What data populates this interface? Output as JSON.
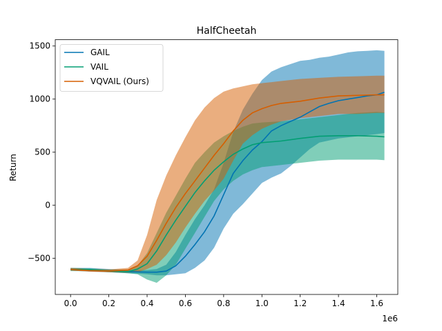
{
  "chart_data": {
    "type": "line",
    "title": "HalfCheetah",
    "xlabel": "",
    "ylabel": "Return",
    "x_offset_label": "1e6",
    "xlim": [
      -0.08,
      1.71
    ],
    "ylim": [
      -840,
      1560
    ],
    "xticks": [
      0.0,
      0.2,
      0.4,
      0.6,
      0.8,
      1.0,
      1.2,
      1.4,
      1.6
    ],
    "xtick_labels": [
      "0.0",
      "0.2",
      "0.4",
      "0.6",
      "0.8",
      "1.0",
      "1.2",
      "1.4",
      "1.6"
    ],
    "yticks": [
      -500,
      0,
      500,
      1000,
      1500
    ],
    "ytick_labels": [
      "−500",
      "0",
      "500",
      "1000",
      "1500"
    ],
    "grid": false,
    "legend_position": "top-left",
    "series": [
      {
        "name": "GAIL",
        "color": "#0173b2",
        "x": [
          0.0,
          0.1,
          0.2,
          0.3,
          0.4,
          0.45,
          0.5,
          0.55,
          0.6,
          0.65,
          0.7,
          0.75,
          0.8,
          0.85,
          0.9,
          0.95,
          1.0,
          1.05,
          1.1,
          1.15,
          1.2,
          1.25,
          1.3,
          1.35,
          1.4,
          1.45,
          1.5,
          1.55,
          1.6,
          1.64
        ],
        "y": [
          -605,
          -610,
          -620,
          -625,
          -630,
          -630,
          -620,
          -570,
          -480,
          -370,
          -250,
          -100,
          100,
          300,
          420,
          520,
          600,
          700,
          750,
          790,
          830,
          880,
          930,
          960,
          985,
          1000,
          1015,
          1030,
          1040,
          1065
        ],
        "upper": [
          -590,
          -590,
          -600,
          -610,
          -610,
          -600,
          -560,
          -440,
          -280,
          -130,
          0,
          150,
          400,
          690,
          900,
          1050,
          1180,
          1260,
          1300,
          1330,
          1360,
          1370,
          1390,
          1400,
          1420,
          1440,
          1450,
          1455,
          1460,
          1455
        ],
        "lower": [
          -615,
          -625,
          -630,
          -640,
          -650,
          -660,
          -660,
          -650,
          -640,
          -590,
          -520,
          -400,
          -220,
          -80,
          10,
          110,
          210,
          260,
          300,
          370,
          450,
          530,
          590,
          610,
          630,
          640,
          650,
          660,
          670,
          680
        ]
      },
      {
        "name": "VAIL",
        "color": "#029e73",
        "x": [
          0.0,
          0.1,
          0.2,
          0.3,
          0.35,
          0.4,
          0.45,
          0.5,
          0.55,
          0.6,
          0.65,
          0.7,
          0.75,
          0.8,
          0.85,
          0.9,
          0.95,
          1.0,
          1.1,
          1.2,
          1.3,
          1.4,
          1.5,
          1.6,
          1.64
        ],
        "y": [
          -605,
          -605,
          -620,
          -625,
          -600,
          -550,
          -430,
          -280,
          -140,
          -10,
          120,
          230,
          330,
          410,
          480,
          530,
          570,
          590,
          605,
          630,
          650,
          655,
          655,
          650,
          645
        ],
        "upper": [
          -590,
          -595,
          -605,
          -605,
          -570,
          -450,
          -260,
          -70,
          90,
          250,
          400,
          500,
          590,
          650,
          700,
          740,
          770,
          780,
          790,
          810,
          830,
          850,
          870,
          880,
          875
        ],
        "lower": [
          -620,
          -620,
          -630,
          -640,
          -650,
          -700,
          -730,
          -660,
          -560,
          -410,
          -260,
          -110,
          40,
          150,
          230,
          290,
          330,
          360,
          380,
          400,
          420,
          430,
          430,
          430,
          425
        ]
      },
      {
        "name": "VQVAIL (Ours)",
        "color": "#d55e00",
        "x": [
          0.0,
          0.1,
          0.2,
          0.3,
          0.35,
          0.4,
          0.45,
          0.5,
          0.55,
          0.6,
          0.65,
          0.7,
          0.75,
          0.8,
          0.85,
          0.9,
          0.95,
          1.0,
          1.05,
          1.1,
          1.2,
          1.3,
          1.4,
          1.5,
          1.6,
          1.64
        ],
        "y": [
          -605,
          -615,
          -620,
          -610,
          -570,
          -480,
          -330,
          -170,
          -20,
          110,
          230,
          350,
          470,
          580,
          700,
          800,
          870,
          910,
          940,
          960,
          980,
          1010,
          1030,
          1035,
          1040,
          1040
        ],
        "upper": [
          -590,
          -600,
          -605,
          -590,
          -520,
          -280,
          50,
          280,
          470,
          640,
          800,
          920,
          1010,
          1070,
          1100,
          1120,
          1140,
          1150,
          1160,
          1170,
          1190,
          1200,
          1210,
          1215,
          1220,
          1220
        ],
        "lower": [
          -615,
          -625,
          -630,
          -635,
          -630,
          -600,
          -560,
          -470,
          -350,
          -210,
          -80,
          40,
          140,
          250,
          420,
          580,
          660,
          720,
          760,
          790,
          820,
          840,
          860,
          860,
          870,
          870
        ]
      }
    ]
  }
}
